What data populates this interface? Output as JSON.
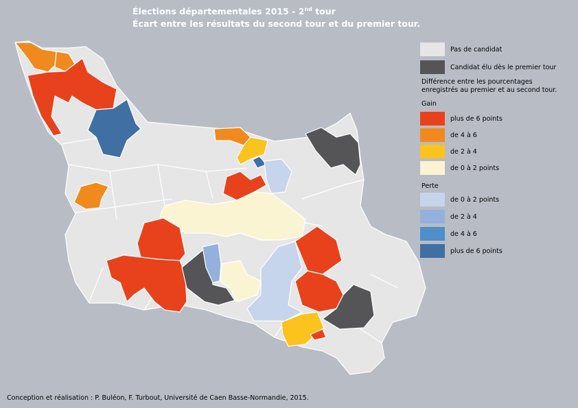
{
  "header": {
    "title_line1": {
      "main": "Élections départementales 2015 - 2",
      "sup": "nd",
      "end": " tour"
    },
    "title_line2": "Écart entre les résultats du second tour et du premier tour."
  },
  "legend": {
    "items": [
      {
        "label": "Pas de candidat",
        "color": "#e6e6e7"
      },
      {
        "label": "Candidat élu dès le premier tour",
        "color": "#555557"
      }
    ],
    "note": [
      "Différence entre les pourcentages",
      "enregistrés au premier et au second tour."
    ],
    "gain": {
      "title": "Gain",
      "items": [
        {
          "label": "plus de 6 points",
          "color": "#e8421c"
        },
        {
          "label": "de 4 à 6",
          "color": "#f08a1e"
        },
        {
          "label": "de 2 à 4",
          "color": "#fcc21d"
        },
        {
          "label": "de 0 à 2 points",
          "color": "#fbf4d2"
        }
      ]
    },
    "perte": {
      "title": "Perte",
      "items": [
        {
          "label": "de 0 à 2 points",
          "color": "#c6d4ec"
        },
        {
          "label": "de 2 à 4",
          "color": "#93b1dc"
        },
        {
          "label": "de 4 à 6",
          "color": "#4d8ecb"
        },
        {
          "label": "plus de 6 points",
          "color": "#3f6fa3"
        }
      ]
    }
  },
  "footer": {
    "credit": "Conception et réalisation : P. Buléon, F. Turbout, Université de Caen Basse-Normandie, 2015."
  }
}
